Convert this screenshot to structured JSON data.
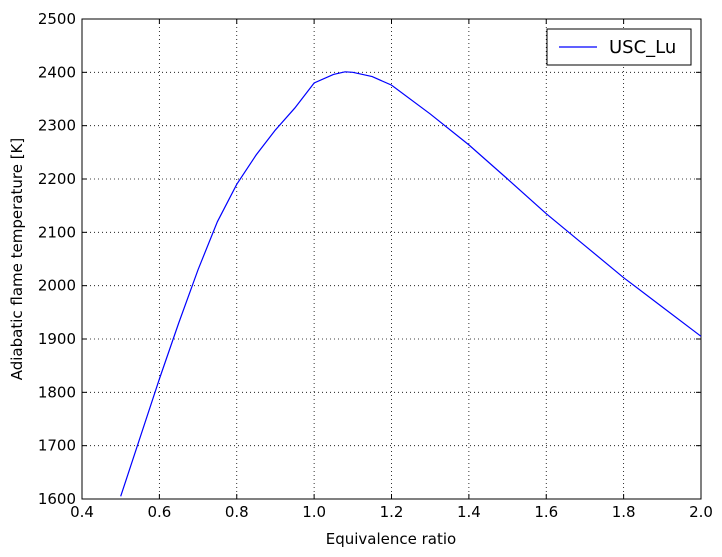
{
  "chart_data": {
    "type": "line",
    "xlabel": "Equivalence ratio",
    "ylabel": "Adiabatic flame temperature [K]",
    "x": [
      0.5,
      0.55,
      0.6,
      0.65,
      0.7,
      0.75,
      0.8,
      0.85,
      0.9,
      0.95,
      1.0,
      1.05,
      1.08,
      1.1,
      1.15,
      1.2,
      1.3,
      1.4,
      1.5,
      1.6,
      1.7,
      1.8,
      1.9,
      2.0
    ],
    "series": [
      {
        "name": "USC_Lu",
        "color": "#0000ff",
        "values": [
          1605,
          1715,
          1825,
          1930,
          2030,
          2120,
          2190,
          2245,
          2292,
          2333,
          2380,
          2396,
          2401,
          2400,
          2392,
          2376,
          2322,
          2264,
          2200,
          2135,
          2075,
          2015,
          1960,
          1905
        ]
      }
    ],
    "xlim": [
      0.4,
      2.0
    ],
    "xticks": [
      0.4,
      0.6,
      0.8,
      {
        "value": 1,
        "label": "1.0"
      },
      1.2,
      1.4,
      1.6,
      1.8,
      {
        "value": 2,
        "label": "2.0"
      }
    ],
    "ylim": [
      1600,
      2500
    ],
    "yticks": [
      1600,
      1700,
      1800,
      1900,
      2000,
      2100,
      2200,
      2300,
      2400,
      2500
    ],
    "grid": true,
    "legend": "upper right"
  }
}
